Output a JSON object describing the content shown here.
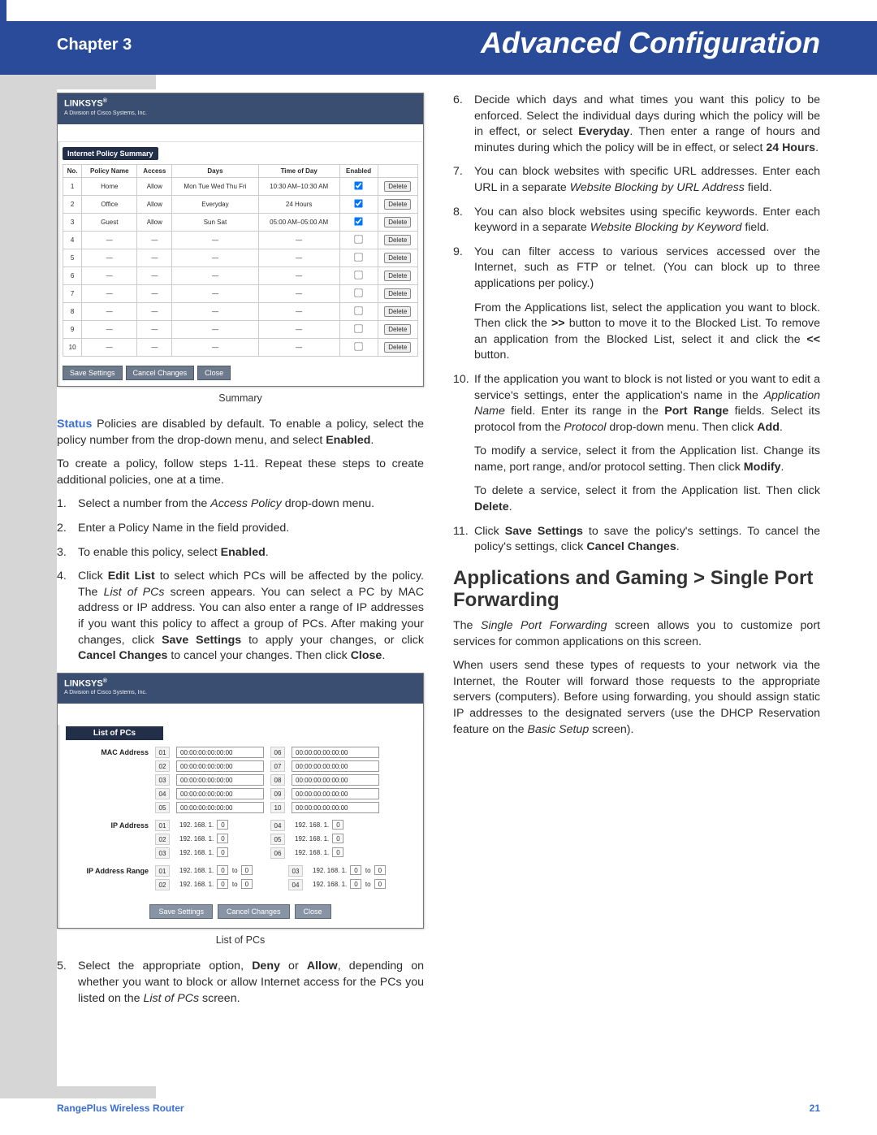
{
  "banner": {
    "chapter": "Chapter 3",
    "title": "Advanced Configuration"
  },
  "colors": {
    "banner_bg": "#2a4b99",
    "sidebar": "#d6d6d6",
    "accent": "#3b6fd6",
    "text": "#2b2b2b"
  },
  "shot1": {
    "brand": "LINKSYS",
    "subbrand": "A Division of Cisco Systems, Inc.",
    "panel_title": "Internet Policy Summary",
    "caption": "Summary",
    "headers": [
      "No.",
      "Policy Name",
      "Access",
      "Days",
      "Time of Day",
      "Enabled",
      ""
    ],
    "rows": [
      {
        "no": "1",
        "name": "Home",
        "access": "Allow",
        "days": "Mon Tue Wed Thu Fri",
        "time": "10:30 AM–10:30 AM",
        "enabled": true
      },
      {
        "no": "2",
        "name": "Office",
        "access": "Allow",
        "days": "Everyday",
        "time": "24 Hours",
        "enabled": true
      },
      {
        "no": "3",
        "name": "Guest",
        "access": "Allow",
        "days": "Sun Sat",
        "time": "05:00 AM–05:00 AM",
        "enabled": true
      },
      {
        "no": "4",
        "name": "—",
        "access": "—",
        "days": "—",
        "time": "—",
        "enabled": false
      },
      {
        "no": "5",
        "name": "—",
        "access": "—",
        "days": "—",
        "time": "—",
        "enabled": false
      },
      {
        "no": "6",
        "name": "—",
        "access": "—",
        "days": "—",
        "time": "—",
        "enabled": false
      },
      {
        "no": "7",
        "name": "—",
        "access": "—",
        "days": "—",
        "time": "—",
        "enabled": false
      },
      {
        "no": "8",
        "name": "—",
        "access": "—",
        "days": "—",
        "time": "—",
        "enabled": false
      },
      {
        "no": "9",
        "name": "—",
        "access": "—",
        "days": "—",
        "time": "—",
        "enabled": false
      },
      {
        "no": "10",
        "name": "—",
        "access": "—",
        "days": "—",
        "time": "—",
        "enabled": false
      }
    ],
    "row_btn": "Delete",
    "buttons": [
      "Save Settings",
      "Cancel Changes",
      "Close"
    ]
  },
  "status_para": {
    "label": "Status",
    "text": "  Policies are disabled by default. To enable a policy, select the policy number from the drop-down menu, and select ",
    "bold": "Enabled",
    "tail": "."
  },
  "create_para": "To create a policy, follow steps 1-11. Repeat these steps to create additional policies, one at a time.",
  "steps_left": [
    {
      "pre": "Select a number from the ",
      "it": "Access Policy",
      "post": " drop-down menu."
    },
    {
      "pre": "Enter a Policy Name in the field provided."
    },
    {
      "pre": "To enable this policy, select ",
      "b": "Enabled",
      "post": "."
    },
    {
      "pre": "Click ",
      "b": "Edit List",
      "post": " to select which PCs will be affected by the policy. The ",
      "it": "List of PCs",
      "post2": " screen appears. You can select a PC by MAC address or IP address. You can also enter a range of IP addresses if you want this policy to affect a group of PCs. After making your changes, click ",
      "b2": "Save Settings",
      "post3": " to apply your changes, or click ",
      "b3": "Cancel Changes",
      "post4": " to cancel your changes. Then click ",
      "b4": "Close",
      "post5": "."
    }
  ],
  "shot2": {
    "brand": "LINKSYS",
    "subbrand": "A Division of Cisco Systems, Inc.",
    "title": "List of PCs",
    "caption": "List of PCs",
    "mac_label": "MAC Address",
    "mac_default": "00:00:00:00:00:00",
    "ip_label": "IP Address",
    "ip_prefix": "192. 168. 1.",
    "ip_oct": "0",
    "range_label": "IP Address Range",
    "range_to": "to",
    "buttons": [
      "Save Settings",
      "Cancel Changes",
      "Close"
    ]
  },
  "step5": {
    "pre": "Select the appropriate option, ",
    "b1": "Deny",
    "mid": " or ",
    "b2": "Allow",
    "post": ", depending on whether you want to block or allow Internet access for the PCs you listed on the ",
    "it": "List of PCs",
    "tail": " screen."
  },
  "right_steps": {
    "s6": {
      "pre": "Decide which days and what times you want this policy to be enforced. Select the individual days during which the policy will be in effect, or select ",
      "b1": "Everyday",
      "mid": ". Then enter a range of hours and minutes during which the policy will be in effect, or select ",
      "b2": "24 Hours",
      "post": "."
    },
    "s7": {
      "pre": "You can block websites with specific URL addresses. Enter each URL in a separate ",
      "it": "Website Blocking by URL Address",
      "post": " field."
    },
    "s8": {
      "pre": "You can also block websites using specific keywords. Enter each keyword in a separate ",
      "it": "Website Blocking by Keyword",
      "post": " field."
    },
    "s9a": "You can filter access to various services accessed over the Internet, such as FTP or telnet. (You can block up to three applications per policy.)",
    "s9b": {
      "pre": "From the Applications list, select the application you want to block. Then click the ",
      "b": ">>",
      "mid": " button to move it to the Blocked List. To remove an application from the Blocked List, select it and click the ",
      "b2": "<<",
      "post": " button."
    },
    "s10a": {
      "pre": "If the application you want to block is not listed or you want to edit a service's settings, enter the application's name in the ",
      "it": "Application Name",
      "mid": " field. Enter its range in the ",
      "b": "Port Range",
      "mid2": " fields. Select its protocol from the ",
      "it2": "Protocol",
      "mid3": " drop-down menu. Then click ",
      "b2": "Add",
      "post": "."
    },
    "s10b": {
      "pre": "To modify a service, select it from the Application list. Change its name, port range, and/or protocol setting. Then click ",
      "b": "Modify",
      "post": "."
    },
    "s10c": {
      "pre": "To delete a service, select it from the Application list. Then click ",
      "b": "Delete",
      "post": "."
    },
    "s11": {
      "pre": "Click ",
      "b": "Save Settings",
      "mid": " to save the policy's settings. To cancel the policy's settings, click ",
      "b2": "Cancel Changes",
      "post": "."
    }
  },
  "section": {
    "heading": "Applications and Gaming > Single Port Forwarding",
    "p1": {
      "pre": "The ",
      "it": "Single Port Forwarding",
      "post": " screen allows you to customize port services for common applications on this screen."
    },
    "p2": {
      "pre": "When users send these types of requests to your network via the Internet, the Router will forward those requests to the appropriate servers (computers). Before using forwarding, you should assign static IP addresses to the designated servers (use the DHCP Reservation feature on the ",
      "it": "Basic Setup",
      "post": " screen)."
    }
  },
  "footer": {
    "product": "RangePlus Wireless Router",
    "page": "21"
  }
}
